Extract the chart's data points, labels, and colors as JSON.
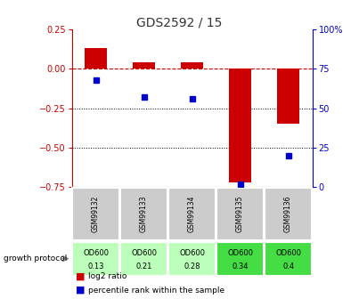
{
  "title": "GDS2592 / 15",
  "samples": [
    "GSM99132",
    "GSM99133",
    "GSM99134",
    "GSM99135",
    "GSM99136"
  ],
  "log2_ratio": [
    0.13,
    0.04,
    0.04,
    -0.72,
    -0.35
  ],
  "percentile_rank": [
    68,
    57,
    56,
    2,
    20
  ],
  "growth_protocol_line1": [
    "OD600",
    "OD600",
    "OD600",
    "OD600",
    "OD600"
  ],
  "growth_protocol_line2": [
    "0.13",
    "0.21",
    "0.28",
    "0.34",
    "0.4"
  ],
  "growth_protocol_colors": [
    "#bbffbb",
    "#bbffbb",
    "#bbffbb",
    "#44dd44",
    "#44dd44"
  ],
  "sample_box_color": "#cccccc",
  "ylim_left": [
    -0.75,
    0.25
  ],
  "ylim_right": [
    0,
    100
  ],
  "yticks_left": [
    -0.75,
    -0.5,
    -0.25,
    0.0,
    0.25
  ],
  "yticks_right": [
    0,
    25,
    50,
    75,
    100
  ],
  "bar_color": "#cc0000",
  "point_color": "#0000cc",
  "dashed_line_color": "#cc0000",
  "dotted_line_color": "#000000",
  "title_color": "#333333",
  "axis_left_color": "#cc0000",
  "axis_right_color": "#0000cc",
  "legend_labels": [
    "log2 ratio",
    "percentile rank within the sample"
  ]
}
